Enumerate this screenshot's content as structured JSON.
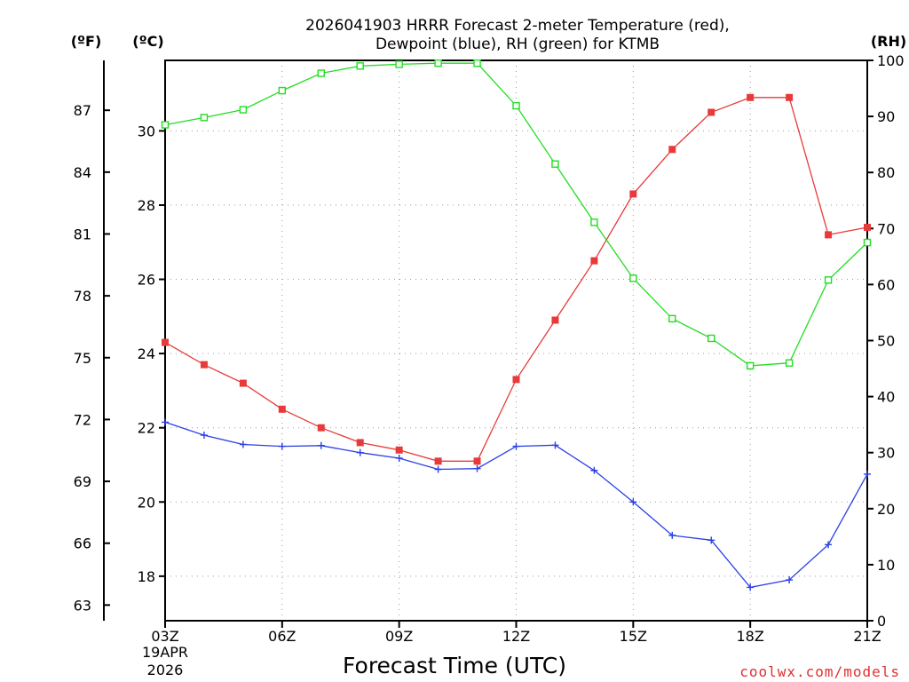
{
  "chart_data": {
    "type": "line",
    "title_line1": "2026041903 HRRR Forecast 2-meter Temperature (red),",
    "title_line2": "Dewpoint (blue), RH (green) for KTMB",
    "xlabel": "Forecast Time (UTC)",
    "credit": "coolwx.com/models",
    "x_date_line1": "19APR",
    "x_date_line2": "2026",
    "unit_f": "(ºF)",
    "unit_c": "(ºC)",
    "unit_rh": "(RH)",
    "x_hours": [
      3,
      4,
      5,
      6,
      7,
      8,
      9,
      10,
      11,
      12,
      13,
      14,
      15,
      16,
      17,
      18,
      19,
      20,
      21
    ],
    "x_ticks": [
      {
        "hour": 3,
        "label": "03Z"
      },
      {
        "hour": 6,
        "label": "06Z"
      },
      {
        "hour": 9,
        "label": "09Z"
      },
      {
        "hour": 12,
        "label": "12Z"
      },
      {
        "hour": 15,
        "label": "15Z"
      },
      {
        "hour": 18,
        "label": "18Z"
      },
      {
        "hour": 21,
        "label": "21Z"
      }
    ],
    "celsius_axis": {
      "range": [
        16.8,
        31.9
      ],
      "ticks": [
        "18",
        "20",
        "22",
        "24",
        "26",
        "28",
        "30"
      ]
    },
    "fahrenheit_ticks": [
      "63",
      "66",
      "69",
      "72",
      "75",
      "78",
      "81",
      "84",
      "87"
    ],
    "rh_axis": {
      "range": [
        0,
        100
      ],
      "ticks": [
        "0",
        "10",
        "20",
        "30",
        "40",
        "50",
        "60",
        "70",
        "80",
        "90",
        "100"
      ]
    },
    "series": [
      {
        "name": "2-meter Temperature",
        "units": "C",
        "color": "#e83a3a",
        "marker": "filled-square",
        "values": [
          24.3,
          23.7,
          23.2,
          22.5,
          22.0,
          21.6,
          21.4,
          21.1,
          21.1,
          23.3,
          24.9,
          26.5,
          28.3,
          29.5,
          30.5,
          30.9,
          30.9,
          27.2,
          27.4
        ]
      },
      {
        "name": "Dewpoint",
        "units": "C",
        "color": "#2a40e6",
        "marker": "plus",
        "values": [
          22.15,
          21.8,
          21.55,
          21.5,
          21.52,
          21.33,
          21.18,
          20.88,
          20.9,
          21.5,
          21.53,
          20.85,
          20.0,
          19.1,
          18.97,
          17.7,
          17.9,
          18.85,
          20.75
        ]
      },
      {
        "name": "RH",
        "units": "%",
        "color": "#22dd22",
        "marker": "open-square",
        "values": [
          88.5,
          89.8,
          91.2,
          94.6,
          97.7,
          99.0,
          99.3,
          99.5,
          99.5,
          91.9,
          81.5,
          71.1,
          61.1,
          53.9,
          50.4,
          45.5,
          46.0,
          60.8,
          67.5
        ]
      }
    ]
  }
}
